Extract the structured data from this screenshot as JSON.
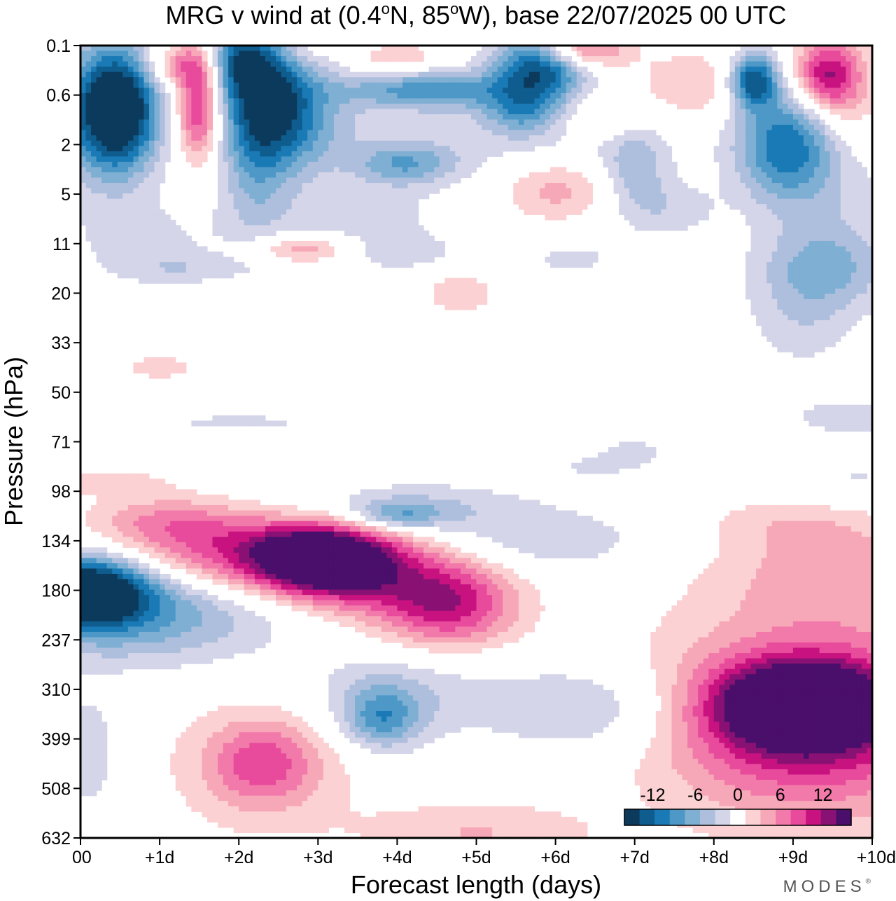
{
  "chart_data": {
    "type": "heatmap",
    "title": "MRG v wind at (0.4°N, 85°W),  base 22/07/2025  00 UTC",
    "title_parts": {
      "prefix": "MRG v wind at (0.4",
      "deg1": "o",
      "mid": "N, 85",
      "deg2": "o",
      "suffix": "W),  base 22/07/2025  00 UTC"
    },
    "xlabel": "Forecast length (days)",
    "ylabel": "Pressure (hPa)",
    "x_range": [
      0,
      10
    ],
    "x_ticks": [
      0,
      1,
      2,
      3,
      4,
      5,
      6,
      7,
      8,
      9,
      10
    ],
    "x_tick_labels": [
      "00",
      "+1d",
      "+2d",
      "+3d",
      "+4d",
      "+5d",
      "+6d",
      "+7d",
      "+8d",
      "+9d",
      "+10d"
    ],
    "y_tick_labels": [
      "0.1",
      "0.6",
      "2",
      "5",
      "11",
      "20",
      "33",
      "50",
      "71",
      "98",
      "134",
      "180",
      "237",
      "310",
      "399",
      "508",
      "632"
    ],
    "y_axis_note": "levels equally spaced, top = 0.1 hPa, bottom = 632 hPa",
    "colorbar": {
      "levels": [
        -14,
        -12,
        -10,
        -8,
        -6,
        -4,
        -2,
        2,
        4,
        6,
        8,
        10,
        12,
        14
      ],
      "tick_labels": [
        "-12",
        "-6",
        "0",
        "6",
        "12"
      ],
      "tick_values": [
        -12,
        -6,
        0,
        6,
        12
      ],
      "colors": [
        "#0b3a5c",
        "#0f5c8e",
        "#1a7ab5",
        "#4d98c7",
        "#7fafd3",
        "#aebfdd",
        "#d4d5e9",
        "#ffffff",
        "#fcd1d3",
        "#f7a8b8",
        "#f27aaa",
        "#e84b9b",
        "#c8127f",
        "#8a1174",
        "#4a0f6b"
      ]
    },
    "brand": "MODES",
    "brand_mark": "®",
    "features": [
      {
        "x": 0.5,
        "level": 1.3,
        "value": -14,
        "sx": 0.34,
        "sy": 0.85
      },
      {
        "x": 0.2,
        "level": 1.3,
        "value": -8,
        "sx": 0.5,
        "sy": 1.0
      },
      {
        "x": 1.5,
        "level": 1.2,
        "value": 12,
        "sx": 0.2,
        "sy": 0.8
      },
      {
        "x": 1.2,
        "level": 0.4,
        "value": 6,
        "sx": 0.3,
        "sy": 0.3
      },
      {
        "x": 0.8,
        "level": 4.0,
        "value": -2.5,
        "sx": 0.8,
        "sy": 0.7
      },
      {
        "x": 2.4,
        "level": 1.1,
        "value": -14,
        "sx": 0.45,
        "sy": 1.0
      },
      {
        "x": 2.0,
        "level": 0.3,
        "value": -8,
        "sx": 0.28,
        "sy": 0.5
      },
      {
        "x": 2.2,
        "level": 2.5,
        "value": -4,
        "sx": 0.3,
        "sy": 1.2
      },
      {
        "x": 3.0,
        "level": 1.7,
        "value": -3,
        "sx": 0.5,
        "sy": 0.6
      },
      {
        "x": 2.8,
        "level": 0.1,
        "value": 3,
        "sx": 0.25,
        "sy": 0.25
      },
      {
        "x": 4.0,
        "level": 0.25,
        "value": 4,
        "sx": 0.35,
        "sy": 0.22
      },
      {
        "x": 4.4,
        "level": 0.9,
        "value": -9,
        "sx": 0.8,
        "sy": 0.28
      },
      {
        "x": 4.1,
        "level": 2.4,
        "value": -7,
        "sx": 0.45,
        "sy": 0.3
      },
      {
        "x": 3.5,
        "level": 3.5,
        "value": -3,
        "sx": 0.8,
        "sy": 0.5
      },
      {
        "x": 5.8,
        "level": 0.4,
        "value": -14,
        "sx": 0.4,
        "sy": 0.45
      },
      {
        "x": 5.6,
        "level": 1.3,
        "value": -7,
        "sx": 0.35,
        "sy": 0.35
      },
      {
        "x": 6.3,
        "level": 0.1,
        "value": 9,
        "sx": 0.4,
        "sy": 0.25
      },
      {
        "x": 5.3,
        "level": 1.9,
        "value": -2.5,
        "sx": 1.4,
        "sy": 0.6
      },
      {
        "x": 6.0,
        "level": 2.9,
        "value": 5,
        "sx": 0.5,
        "sy": 0.45
      },
      {
        "x": 7.8,
        "level": 0.8,
        "value": 4,
        "sx": 0.6,
        "sy": 0.5
      },
      {
        "x": 6.6,
        "level": 1.5,
        "value": 3,
        "sx": 0.4,
        "sy": 0.3
      },
      {
        "x": 7.0,
        "level": 2.5,
        "value": -5,
        "sx": 0.3,
        "sy": 0.7
      },
      {
        "x": 8.5,
        "level": 0.7,
        "value": -14,
        "sx": 0.22,
        "sy": 0.4
      },
      {
        "x": 8.9,
        "level": 2.0,
        "value": -11,
        "sx": 0.45,
        "sy": 0.8
      },
      {
        "x": 9.4,
        "level": 0.6,
        "value": 11,
        "sx": 0.28,
        "sy": 0.5
      },
      {
        "x": 9.7,
        "level": 1.0,
        "value": 4,
        "sx": 0.3,
        "sy": 0.8
      },
      {
        "x": 7.5,
        "level": 3.3,
        "value": -3,
        "sx": 0.4,
        "sy": 0.4
      },
      {
        "x": 9.4,
        "level": 4.5,
        "value": -6,
        "sx": 0.6,
        "sy": 0.6
      },
      {
        "x": 9.1,
        "level": 5.6,
        "value": -3,
        "sx": 0.5,
        "sy": 0.7
      },
      {
        "x": 9.5,
        "level": 3.0,
        "value": -2.5,
        "sx": 0.6,
        "sy": 1.0
      },
      {
        "x": 2.8,
        "level": 4.1,
        "value": 6,
        "sx": 0.45,
        "sy": 0.2
      },
      {
        "x": 4.8,
        "level": 5.0,
        "value": 3,
        "sx": 0.4,
        "sy": 0.4
      },
      {
        "x": 1.3,
        "level": 4.5,
        "value": -2.5,
        "sx": 0.5,
        "sy": 0.2
      },
      {
        "x": 4.1,
        "level": 4.2,
        "value": -3,
        "sx": 0.5,
        "sy": 0.25
      },
      {
        "x": 6.2,
        "level": 4.3,
        "value": -2.5,
        "sx": 0.5,
        "sy": 0.3
      },
      {
        "x": 1.0,
        "level": 6.5,
        "value": 3,
        "sx": 0.4,
        "sy": 0.2
      },
      {
        "x": 0.3,
        "level": 8.8,
        "value": 3,
        "sx": 0.6,
        "sy": 0.2
      },
      {
        "x": 2.0,
        "level": 7.6,
        "value": -2.5,
        "sx": 0.9,
        "sy": 0.15
      },
      {
        "x": 7.0,
        "level": 8.2,
        "value": -3,
        "sx": 0.3,
        "sy": 0.2
      },
      {
        "x": 6.5,
        "level": 8.5,
        "value": -2.5,
        "sx": 0.4,
        "sy": 0.2
      },
      {
        "x": 9.7,
        "level": 7.5,
        "value": -2.5,
        "sx": 0.8,
        "sy": 0.4
      },
      {
        "x": 9.8,
        "level": 8.8,
        "value": -2.5,
        "sx": 0.8,
        "sy": 0.4
      },
      {
        "x": 0.1,
        "level": 11.0,
        "value": -17,
        "sx": 0.55,
        "sy": 0.5
      },
      {
        "x": 0.8,
        "level": 11.4,
        "value": -8,
        "sx": 1.2,
        "sy": 0.75
      },
      {
        "x": 1.1,
        "level": 9.6,
        "value": 5,
        "sx": 0.7,
        "sy": 0.38
      },
      {
        "x": 2.3,
        "level": 10.3,
        "value": 11,
        "sx": 1.3,
        "sy": 0.55
      },
      {
        "x": 3.1,
        "level": 10.4,
        "value": 15,
        "sx": 0.6,
        "sy": 0.5
      },
      {
        "x": 4.0,
        "level": 11.0,
        "value": 5,
        "sx": 0.8,
        "sy": 0.7
      },
      {
        "x": 4.7,
        "level": 11.3,
        "value": 9,
        "sx": 0.6,
        "sy": 0.65
      },
      {
        "x": 4.1,
        "level": 9.3,
        "value": -4,
        "sx": 1.0,
        "sy": 0.35
      },
      {
        "x": 5.5,
        "level": 10.0,
        "value": -4,
        "sx": 1.3,
        "sy": 0.5
      },
      {
        "x": 4.0,
        "level": 9.5,
        "value": -6,
        "sx": 0.4,
        "sy": 0.2
      },
      {
        "x": 4.0,
        "level": 13.0,
        "value": -4,
        "sx": 0.9,
        "sy": 0.7
      },
      {
        "x": 3.8,
        "level": 13.6,
        "value": -8,
        "sx": 0.35,
        "sy": 0.45
      },
      {
        "x": 6.5,
        "level": 13.4,
        "value": -5,
        "sx": 0.9,
        "sy": 0.65
      },
      {
        "x": 2.3,
        "level": 14.5,
        "value": 4,
        "sx": 0.9,
        "sy": 1.1
      },
      {
        "x": 2.3,
        "level": 14.5,
        "value": 6,
        "sx": 0.45,
        "sy": 0.55
      },
      {
        "x": 5.0,
        "level": 15.9,
        "value": 4,
        "sx": 1.0,
        "sy": 0.45
      },
      {
        "x": 0.1,
        "level": 14.3,
        "value": -4,
        "sx": 0.25,
        "sy": 0.8
      },
      {
        "x": 9.1,
        "level": 13.3,
        "value": 15,
        "sx": 0.7,
        "sy": 0.55
      },
      {
        "x": 9.2,
        "level": 13.6,
        "value": 10,
        "sx": 1.2,
        "sy": 1.1
      },
      {
        "x": 9.3,
        "level": 13.5,
        "value": 4,
        "sx": 1.7,
        "sy": 2.0
      },
      {
        "x": 9.6,
        "level": 10.6,
        "value": 4,
        "sx": 1.1,
        "sy": 0.7
      },
      {
        "x": 9.0,
        "level": 9.6,
        "value": 2.6,
        "sx": 0.8,
        "sy": 0.4
      }
    ]
  }
}
